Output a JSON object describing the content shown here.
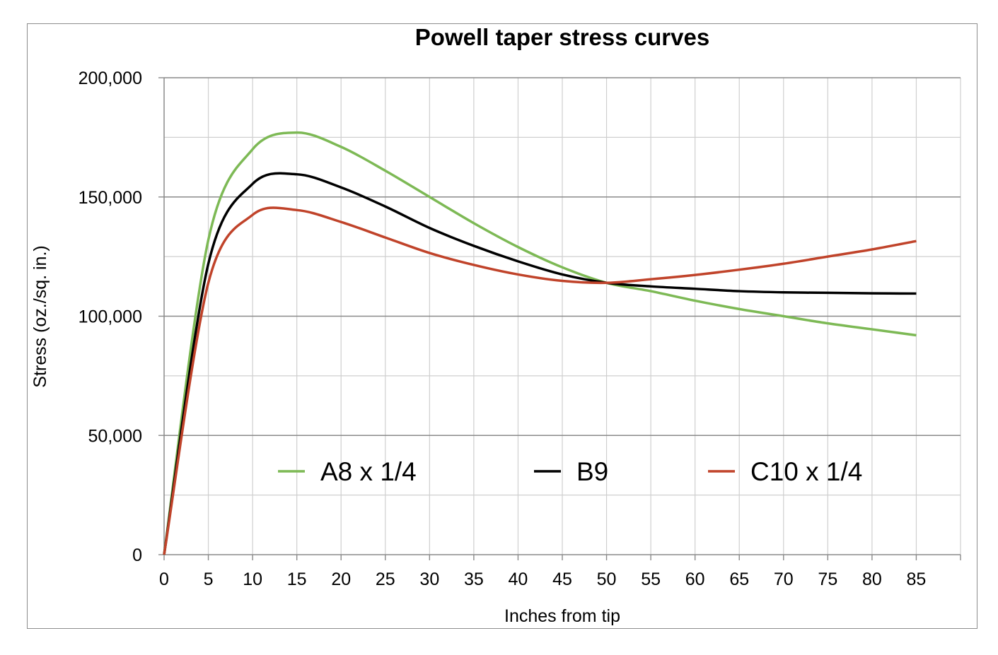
{
  "chart_data": {
    "type": "line",
    "title": "Powell taper stress curves",
    "xlabel": "Inches from tip",
    "ylabel": "Stress (oz./sq. in.)",
    "xlim": [
      0,
      90
    ],
    "ylim": [
      0,
      200000
    ],
    "x_ticks": [
      "0",
      "5",
      "10",
      "15",
      "20",
      "25",
      "30",
      "35",
      "40",
      "45",
      "50",
      "55",
      "60",
      "65",
      "70",
      "75",
      "80",
      "85"
    ],
    "y_ticks": [
      "0",
      "50,000",
      "100,000",
      "150,000",
      "200,000"
    ],
    "x_tick_values": [
      0,
      5,
      10,
      15,
      20,
      25,
      30,
      35,
      40,
      45,
      50,
      55,
      60,
      65,
      70,
      75,
      80,
      85
    ],
    "y_tick_values": [
      0,
      50000,
      100000,
      150000,
      200000
    ],
    "grid": true,
    "legend_position": "inside-bottom",
    "x": [
      0,
      5,
      10,
      15,
      20,
      25,
      30,
      35,
      40,
      45,
      50,
      55,
      60,
      65,
      70,
      75,
      80,
      85
    ],
    "series": [
      {
        "name": "A8 x 1/4",
        "color": "#7db955",
        "values": [
          0,
          132000,
          170000,
          177000,
          171000,
          161000,
          150000,
          139000,
          129000,
          120500,
          114000,
          110500,
          106500,
          103000,
          100000,
          97000,
          94500,
          92000
        ]
      },
      {
        "name": "B9",
        "color": "#000000",
        "values": [
          0,
          122000,
          155500,
          159500,
          154000,
          146000,
          137000,
          129500,
          123000,
          117500,
          114000,
          112500,
          111500,
          110500,
          110000,
          109800,
          109600,
          109500
        ]
      },
      {
        "name": "C10 x 1/4",
        "color": "#c0432a",
        "values": [
          0,
          114000,
          142500,
          144500,
          139500,
          133000,
          126500,
          121500,
          117500,
          114800,
          114000,
          115500,
          117300,
          119500,
          122000,
          125000,
          128000,
          131500
        ]
      }
    ]
  }
}
